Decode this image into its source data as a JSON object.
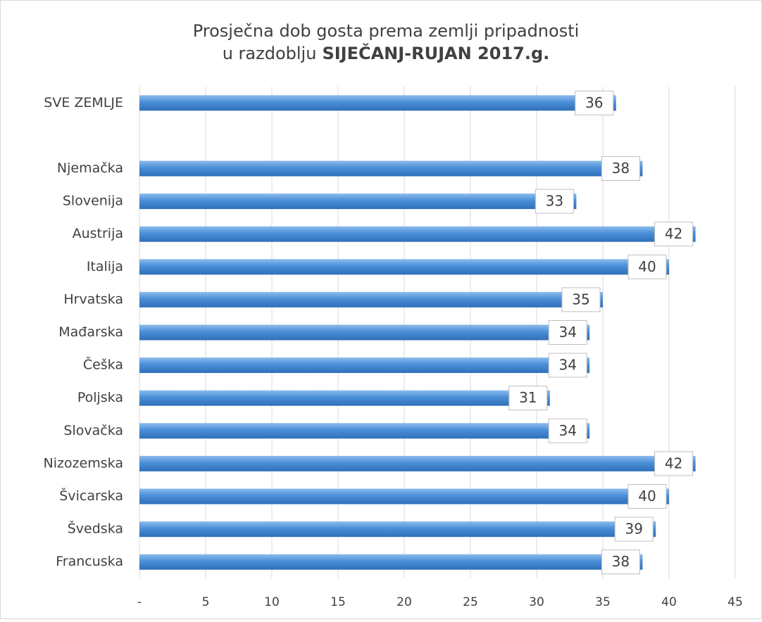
{
  "chart_data": {
    "type": "bar",
    "orientation": "horizontal",
    "title": {
      "line1": "Prosječna dob gosta prema zemlji pripadnosti",
      "line2": "u razdoblju",
      "line2_bold": "SIJEČANJ-RUJAN 2017.g."
    },
    "categories": [
      "SVE ZEMLJE",
      null,
      "Njemačka",
      "Slovenija",
      "Austrija",
      "Italija",
      "Hrvatska",
      "Mađarska",
      "Češka",
      "Poljska",
      "Slovačka",
      "Nizozemska",
      "Švicarska",
      "Švedska",
      "Francuska"
    ],
    "values": [
      36,
      null,
      38,
      33,
      42,
      40,
      35,
      34,
      34,
      31,
      34,
      42,
      40,
      39,
      38
    ],
    "color": "#4a8fd8",
    "xlim": [
      0,
      45
    ],
    "xticks": [
      {
        "value": 0,
        "label": "-"
      },
      5,
      10,
      15,
      20,
      25,
      30,
      35,
      40,
      45
    ],
    "grid": true
  }
}
